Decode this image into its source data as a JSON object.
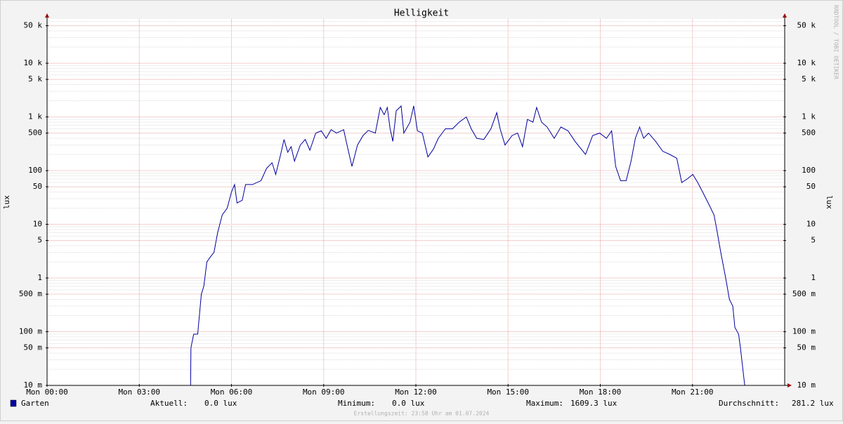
{
  "chart_data": {
    "type": "line",
    "title": "Helligkeit",
    "y_label": "lux",
    "watermark": "RRDTOOL / TOBI OETIKER",
    "footer": "Erstellungszeit: 23:58 Uhr am 01.07.2024",
    "log_scale": true,
    "grid": true,
    "xlim": [
      0,
      24
    ],
    "xticks": [
      {
        "value": 0,
        "label": "Mon 00:00"
      },
      {
        "value": 3,
        "label": "Mon 03:00"
      },
      {
        "value": 6,
        "label": "Mon 06:00"
      },
      {
        "value": 9,
        "label": "Mon 09:00"
      },
      {
        "value": 12,
        "label": "Mon 12:00"
      },
      {
        "value": 15,
        "label": "Mon 15:00"
      },
      {
        "value": 18,
        "label": "Mon 18:00"
      },
      {
        "value": 21,
        "label": "Mon 21:00"
      }
    ],
    "ylim": [
      0.01,
      66800
    ],
    "yticks": [
      {
        "value": 50000,
        "label": "50 k"
      },
      {
        "value": 10000,
        "label": "10 k"
      },
      {
        "value": 5000,
        "label": "5 k"
      },
      {
        "value": 1000,
        "label": "1 k"
      },
      500,
      100,
      50,
      10,
      5,
      1,
      {
        "value": 0.5,
        "label": "500 m"
      },
      {
        "value": 0.1,
        "label": "100 m"
      },
      {
        "value": 0.05,
        "label": "50 m"
      },
      {
        "value": 0.01,
        "label": "10 m"
      }
    ],
    "x": [
      1,
      4.67,
      4.68,
      4.77,
      4.9,
      5.02,
      5.1,
      5.2,
      5.32,
      5.43,
      5.55,
      5.7,
      5.86,
      6.0,
      6.1,
      6.18,
      6.35,
      6.46,
      6.68,
      6.96,
      7.14,
      7.32,
      7.44,
      7.6,
      7.71,
      7.83,
      7.94,
      8.05,
      8.24,
      8.4,
      8.55,
      8.74,
      8.92,
      9.08,
      9.24,
      9.42,
      9.65,
      9.76,
      9.92,
      10.1,
      10.28,
      10.45,
      10.68,
      10.84,
      10.97,
      11.07,
      11.16,
      11.25,
      11.36,
      11.52,
      11.61,
      11.81,
      11.93,
      12.05,
      12.21,
      12.39,
      12.57,
      12.73,
      12.96,
      13.19,
      13.41,
      13.64,
      13.8,
      13.98,
      14.21,
      14.44,
      14.63,
      14.74,
      14.9,
      15.13,
      15.31,
      15.47,
      15.63,
      15.81,
      15.93,
      16.09,
      16.27,
      16.5,
      16.72,
      16.95,
      17.18,
      17.52,
      17.75,
      17.98,
      18.2,
      18.37,
      18.5,
      18.66,
      18.84,
      19.0,
      19.14,
      19.28,
      19.41,
      19.57,
      19.8,
      20.03,
      20.26,
      20.49,
      20.65,
      20.83,
      21.01,
      21.17,
      21.33,
      21.51,
      21.7,
      21.79,
      21.92,
      22.08,
      22.2,
      22.31,
      22.38,
      22.5,
      22.56,
      22.7,
      24
    ],
    "series": [
      {
        "name": "Garten",
        "color": "#0000a0",
        "values": [
          0.01,
          0.01,
          0.05,
          0.09,
          0.09,
          0.5,
          0.7,
          2,
          2.5,
          3,
          7,
          15,
          20,
          40,
          55,
          25,
          28,
          55,
          55,
          65,
          110,
          140,
          85,
          200,
          380,
          220,
          280,
          150,
          300,
          380,
          240,
          500,
          550,
          400,
          580,
          500,
          580,
          300,
          120,
          300,
          450,
          560,
          500,
          1500,
          1100,
          1500,
          600,
          350,
          1300,
          1600,
          500,
          800,
          1609.3,
          550,
          500,
          180,
          250,
          400,
          600,
          600,
          800,
          1000,
          600,
          400,
          380,
          600,
          1200,
          600,
          300,
          450,
          500,
          280,
          900,
          800,
          1500,
          800,
          650,
          400,
          650,
          550,
          350,
          200,
          450,
          500,
          400,
          550,
          120,
          65,
          65,
          150,
          400,
          650,
          400,
          500,
          350,
          230,
          200,
          170,
          60,
          70,
          85,
          60,
          40,
          25,
          15,
          8,
          3,
          1,
          0.4,
          0.3,
          0.12,
          0.09,
          0.05,
          0.01,
          0.01
        ]
      }
    ],
    "stats": [
      {
        "label": "Aktuell:",
        "text": "0.0 lux"
      },
      {
        "label": "Minimum:",
        "text": "0.0 lux"
      },
      {
        "label": "Maximum:",
        "text": "1609.3 lux"
      },
      {
        "label": "Durchschnitt:",
        "text": "281.2 lux"
      }
    ]
  }
}
